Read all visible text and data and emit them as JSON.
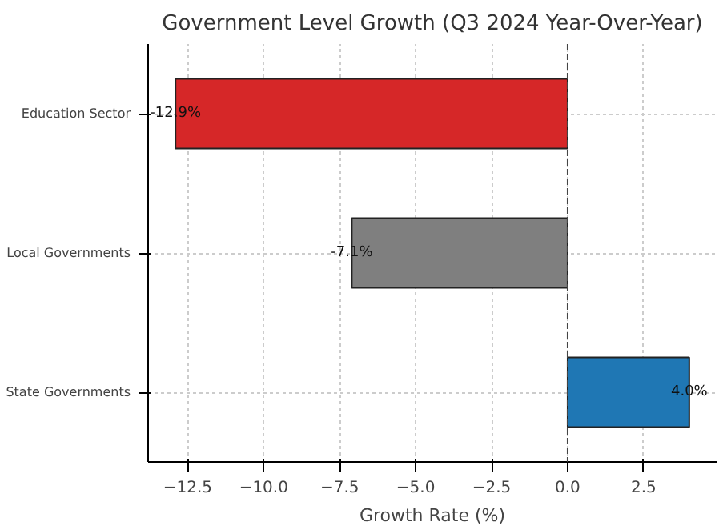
{
  "chart_data": {
    "type": "bar",
    "orientation": "horizontal",
    "title": "Government Level Growth (Q3 2024 Year-Over-Year)",
    "xlabel": "Growth Rate (%)",
    "categories": [
      "Education Sector",
      "Local Governments",
      "State Governments"
    ],
    "values": [
      -12.9,
      -7.1,
      4.0
    ],
    "colors": [
      "#d62728",
      "#7f7f7f",
      "#1f77b4"
    ],
    "value_labels": [
      "-12.9%",
      "-7.1%",
      "4.0%"
    ],
    "xlim": [
      -13.8,
      4.9
    ],
    "xticks": [
      {
        "value": -12.5,
        "label": "−12.5"
      },
      {
        "value": -10,
        "label": "−10.0"
      },
      {
        "value": -7.5,
        "label": "−7.5"
      },
      {
        "value": -5,
        "label": "−5.0"
      },
      {
        "value": -2.5,
        "label": "−2.5"
      },
      {
        "value": 0,
        "label": "0.0"
      },
      {
        "value": 2.5,
        "label": "2.5"
      }
    ],
    "ref_lines": [
      {
        "axis": "x",
        "value": 0,
        "color": "#444444",
        "line_style": "dashed"
      }
    ],
    "grid": true
  }
}
